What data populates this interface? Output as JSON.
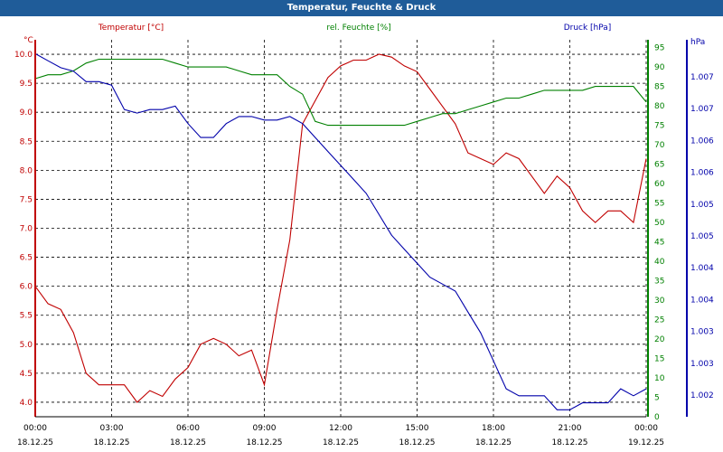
{
  "colors": {
    "title_bar": "#1f5c99",
    "temperature": "#c00000",
    "humidity": "#008000",
    "pressure": "#0000aa",
    "grid": "#000000"
  },
  "chart_data": {
    "type": "line",
    "title": "Temperatur, Feuchte & Druck",
    "x_ticks": [
      {
        "time": "00:00",
        "date": "18.12.25"
      },
      {
        "time": "03:00",
        "date": "18.12.25"
      },
      {
        "time": "06:00",
        "date": "18.12.25"
      },
      {
        "time": "09:00",
        "date": "18.12.25"
      },
      {
        "time": "12:00",
        "date": "18.12.25"
      },
      {
        "time": "15:00",
        "date": "18.12.25"
      },
      {
        "time": "18:00",
        "date": "18.12.25"
      },
      {
        "time": "21:00",
        "date": "18.12.25"
      },
      {
        "time": "00:00",
        "date": "19.12.25"
      }
    ],
    "xlim_hours": [
      0,
      24
    ],
    "axes": {
      "temperature": {
        "unit": "°C",
        "range": [
          3.75,
          10.25
        ],
        "ticks": [
          "10.0",
          "9.5",
          "9.0",
          "8.5",
          "8.0",
          "7.5",
          "7.0",
          "6.5",
          "6.0",
          "5.5",
          "5.0",
          "4.5",
          "4.0"
        ]
      },
      "humidity": {
        "unit": "%",
        "range": [
          0,
          97
        ],
        "ticks": [
          "95",
          "90",
          "85",
          "80",
          "75",
          "70",
          "65",
          "60",
          "55",
          "50",
          "45",
          "40",
          "35",
          "30",
          "25",
          "20",
          "15",
          "10",
          "5",
          "0"
        ]
      },
      "pressure": {
        "unit": "hPa",
        "range": [
          1002.0,
          1007.4
        ],
        "ticks": [
          "1.007",
          "1.007",
          "1.006",
          "1.006",
          "1.005",
          "1.005",
          "1.004",
          "1.004",
          "1.003",
          "1.003",
          "1.002"
        ]
      }
    },
    "series": [
      {
        "name": "Temperatur [°C]",
        "axis": "temperature",
        "x": [
          0,
          0.5,
          1,
          1.5,
          2,
          2.5,
          3,
          3.5,
          4,
          4.5,
          5,
          5.5,
          6,
          6.5,
          7,
          7.5,
          8,
          8.5,
          9,
          9.5,
          10,
          10.5,
          11,
          11.5,
          12,
          12.5,
          13,
          13.5,
          14,
          14.5,
          15,
          15.5,
          16,
          16.5,
          17,
          17.5,
          18,
          18.5,
          19,
          19.5,
          20,
          20.5,
          21,
          21.5,
          22,
          22.5,
          23,
          23.5,
          24
        ],
        "values": [
          6.0,
          5.7,
          5.6,
          5.2,
          4.5,
          4.3,
          4.3,
          4.3,
          4.0,
          4.2,
          4.1,
          4.4,
          4.6,
          5.0,
          5.1,
          5.0,
          4.8,
          4.9,
          4.3,
          5.6,
          6.8,
          8.8,
          9.2,
          9.6,
          9.8,
          9.9,
          9.9,
          10.0,
          9.95,
          9.8,
          9.7,
          9.4,
          9.1,
          8.8,
          8.3,
          8.2,
          8.1,
          8.3,
          8.2,
          7.9,
          7.6,
          7.9,
          7.7,
          7.3,
          7.1,
          7.3,
          7.3,
          7.1,
          8.2
        ]
      },
      {
        "name": "rel. Feuchte [%]",
        "axis": "humidity",
        "x": [
          0,
          0.5,
          1,
          1.5,
          2,
          2.5,
          3,
          3.5,
          4,
          4.5,
          5,
          5.5,
          6,
          6.5,
          7,
          7.5,
          8,
          8.5,
          9,
          9.5,
          10,
          10.5,
          11,
          11.5,
          12,
          12.5,
          13,
          13.5,
          14,
          14.5,
          15,
          15.5,
          16,
          16.5,
          17,
          17.5,
          18,
          18.5,
          19,
          19.5,
          20,
          20.5,
          21,
          21.5,
          22,
          22.5,
          23,
          23.5,
          24
        ],
        "values": [
          87,
          88,
          88,
          89,
          91,
          92,
          92,
          92,
          92,
          92,
          92,
          91,
          90,
          90,
          90,
          90,
          89,
          88,
          88,
          88,
          85,
          83,
          76,
          75,
          75,
          75,
          75,
          75,
          75,
          75,
          76,
          77,
          78,
          78,
          79,
          80,
          81,
          82,
          82,
          83,
          84,
          84,
          84,
          84,
          85,
          85,
          85,
          85,
          81
        ]
      },
      {
        "name": "Druck [hPa]",
        "axis": "pressure",
        "x": [
          0,
          0.5,
          1,
          1.5,
          2,
          2.5,
          3,
          3.5,
          4,
          4.5,
          5,
          5.5,
          6,
          6.5,
          7,
          7.5,
          8,
          8.5,
          9,
          9.5,
          10,
          10.5,
          11,
          11.5,
          12,
          12.5,
          13,
          13.5,
          14,
          14.5,
          15,
          15.5,
          16,
          16.5,
          17,
          17.5,
          18,
          18.5,
          19,
          19.5,
          20,
          20.5,
          21,
          21.5,
          22,
          22.5,
          23,
          23.5,
          24
        ],
        "values": [
          1007.2,
          1007.1,
          1007.0,
          1006.95,
          1006.8,
          1006.8,
          1006.75,
          1006.4,
          1006.35,
          1006.4,
          1006.4,
          1006.45,
          1006.2,
          1006.0,
          1006.0,
          1006.2,
          1006.3,
          1006.3,
          1006.25,
          1006.25,
          1006.3,
          1006.2,
          1006.0,
          1005.8,
          1005.6,
          1005.4,
          1005.2,
          1004.9,
          1004.6,
          1004.4,
          1004.2,
          1004.0,
          1003.9,
          1003.8,
          1003.5,
          1003.2,
          1002.8,
          1002.4,
          1002.3,
          1002.3,
          1002.3,
          1002.1,
          1002.1,
          1002.2,
          1002.2,
          1002.2,
          1002.4,
          1002.3,
          1002.4
        ]
      }
    ]
  }
}
